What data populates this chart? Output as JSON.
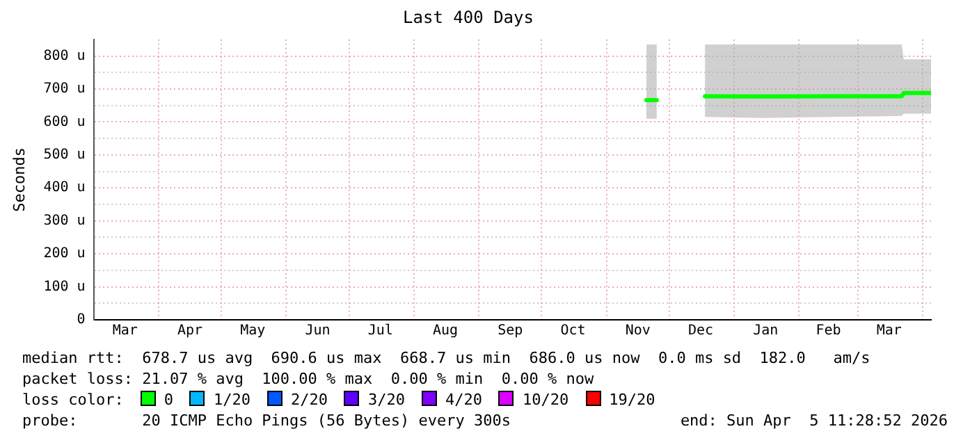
{
  "chart_data": {
    "type": "line",
    "title": "Last 400 Days",
    "ylabel": "Seconds",
    "legend_title": "loss color:",
    "legend": "bottom",
    "grid": true,
    "line_style": "solid",
    "marker": "none",
    "xlim": [
      "2025-03-01",
      "2026-04-05"
    ],
    "xticks": [
      {
        "value": "2025-03-16",
        "label": "Mar"
      },
      {
        "value": "2025-04-01",
        "label": null
      },
      {
        "value": "2025-04-16",
        "label": "Apr"
      },
      {
        "value": "2025-05-01",
        "label": null
      },
      {
        "value": "2025-05-16",
        "label": "May"
      },
      {
        "value": "2025-06-01",
        "label": null
      },
      {
        "value": "2025-06-16",
        "label": "Jun"
      },
      {
        "value": "2025-07-01",
        "label": null
      },
      {
        "value": "2025-07-16",
        "label": "Jul"
      },
      {
        "value": "2025-08-01",
        "label": null
      },
      {
        "value": "2025-08-16",
        "label": "Aug"
      },
      {
        "value": "2025-09-01",
        "label": null
      },
      {
        "value": "2025-09-16",
        "label": "Sep"
      },
      {
        "value": "2025-10-01",
        "label": null
      },
      {
        "value": "2025-10-16",
        "label": "Oct"
      },
      {
        "value": "2025-11-01",
        "label": null
      },
      {
        "value": "2025-11-16",
        "label": "Nov"
      },
      {
        "value": "2025-12-01",
        "label": null
      },
      {
        "value": "2025-12-16",
        "label": "Dec"
      },
      {
        "value": "2026-01-01",
        "label": null
      },
      {
        "value": "2026-01-16",
        "label": "Jan"
      },
      {
        "value": "2026-02-01",
        "label": null
      },
      {
        "value": "2026-02-15",
        "label": "Feb"
      },
      {
        "value": "2026-03-01",
        "label": null
      },
      {
        "value": "2026-03-16",
        "label": "Mar"
      },
      {
        "value": "2026-04-01",
        "label": null
      }
    ],
    "ylim": [
      0,
      850
    ],
    "yticks": [
      {
        "value": 0,
        "label": "0"
      },
      {
        "value": 50,
        "label": null
      },
      {
        "value": 100,
        "label": "100 u"
      },
      {
        "value": 150,
        "label": null
      },
      {
        "value": 200,
        "label": "200 u"
      },
      {
        "value": 250,
        "label": null
      },
      {
        "value": 300,
        "label": "300 u"
      },
      {
        "value": 350,
        "label": null
      },
      {
        "value": 400,
        "label": "400 u"
      },
      {
        "value": 450,
        "label": null
      },
      {
        "value": 500,
        "label": "500 u"
      },
      {
        "value": 550,
        "label": null
      },
      {
        "value": 600,
        "label": "600 u"
      },
      {
        "value": 650,
        "label": null
      },
      {
        "value": 700,
        "label": "700 u"
      },
      {
        "value": 750,
        "label": null
      },
      {
        "value": 800,
        "label": "800 u"
      }
    ],
    "series": [
      {
        "name": "0",
        "color": "#00ff00",
        "x": [
          "2025-11-20",
          "2025-11-25",
          "2025-12-01",
          "2025-12-18",
          "2026-01-15",
          "2026-02-15",
          "2026-03-22",
          "2026-03-23",
          "2026-04-05"
        ],
        "values": [
          666,
          666,
          null,
          678,
          677,
          678,
          678,
          688,
          688
        ],
        "lower": [
          610,
          610,
          null,
          615,
          612,
          615,
          618,
          625,
          625
        ],
        "upper": [
          835,
          835,
          null,
          835,
          835,
          835,
          835,
          790,
          790
        ]
      },
      {
        "name": "1/20",
        "color": "#00b8ff"
      },
      {
        "name": "2/20",
        "color": "#0059ff"
      },
      {
        "name": "3/20",
        "color": "#5e00ff"
      },
      {
        "name": "4/20",
        "color": "#7e00ff"
      },
      {
        "name": "10/20",
        "color": "#dd00ff"
      },
      {
        "name": "19/20",
        "color": "#ff0000"
      }
    ],
    "annotations": [
      "median rtt:  678.7 us avg  690.6 us max  668.7 us min  686.0 us now  0.0 ms sd  182.0   am/s",
      "packet loss: 21.07 % avg  100.00 % max  0.00 % min  0.00 % now",
      "probe:       20 ICMP Echo Pings (56 Bytes) every 300s",
      "end: Sun Apr  5 11:28:52 2026"
    ]
  }
}
